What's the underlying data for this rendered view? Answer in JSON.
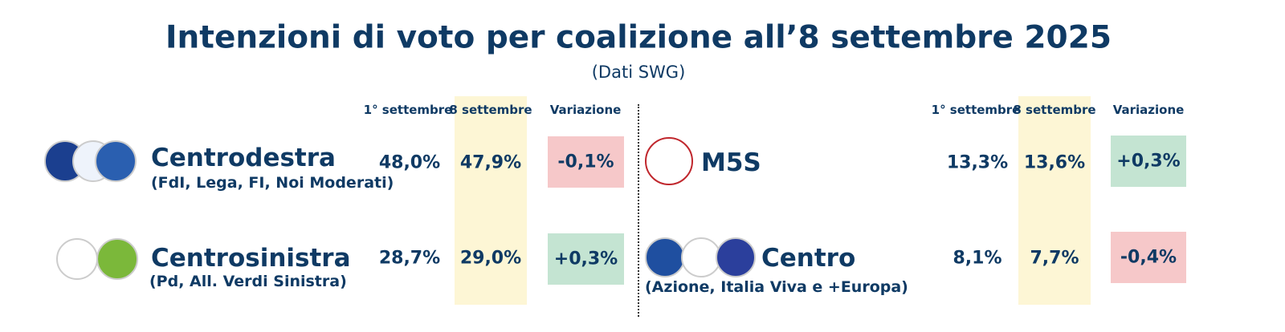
{
  "header": {
    "title": "Intenzioni di voto per coalizione all’8 settembre 2025",
    "subtitle": "(Dati SWG)"
  },
  "panels": [
    {
      "columns": [
        "1° settembre",
        "8 settembre",
        "Variazione"
      ],
      "rows": [
        {
          "name": "Centrodestra",
          "parties": "(FdI, Lega, FI, Noi Moderati)",
          "prev": "48,0%",
          "curr": "47,9%",
          "change": "-0,1%",
          "color": "#f6c8c9"
        },
        {
          "name": "Centrosinistra",
          "parties": "(Pd, All. Verdi Sinistra)",
          "prev": "28,7%",
          "curr": "29,0%",
          "change": "+0,3%",
          "color": "#c4e4d2"
        }
      ]
    },
    {
      "columns": [
        "1° settembre",
        "8 settembre",
        "Variazione"
      ],
      "rows": [
        {
          "name": "M5S",
          "prev": "13,3%",
          "curr": "13,6%",
          "change": "+0,3%",
          "color": "#c4e4d2"
        },
        {
          "name": "Centro",
          "parties": "(Azione, Italia Viva e +Europa)",
          "prev": "8,1%",
          "curr": "7,7%",
          "change": "-0,4%",
          "color": "#f6c8c9"
        }
      ]
    }
  ]
}
